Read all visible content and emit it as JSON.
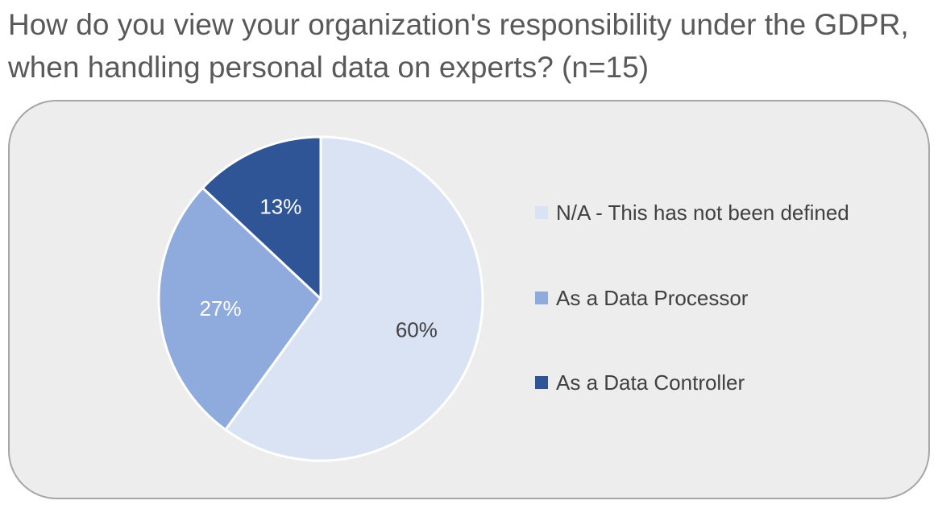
{
  "chart_data": {
    "type": "pie",
    "title": "How do you view your organization's responsibility under the GDPR, when handling personal data on experts? (n=15)",
    "slices": [
      {
        "name": "N/A - This has not been defined",
        "value": 60,
        "label": "60%",
        "color": "#dae3f3",
        "label_color": "#404040"
      },
      {
        "name": "As a Data Processor",
        "value": 27,
        "label": "27%",
        "color": "#8faadc",
        "label_color": "#ffffff"
      },
      {
        "name": "As a Data Controller",
        "value": 13,
        "label": "13%",
        "color": "#2f5597",
        "label_color": "#ffffff"
      }
    ],
    "legend_position": "right",
    "slice_border_color": "#ffffff"
  }
}
